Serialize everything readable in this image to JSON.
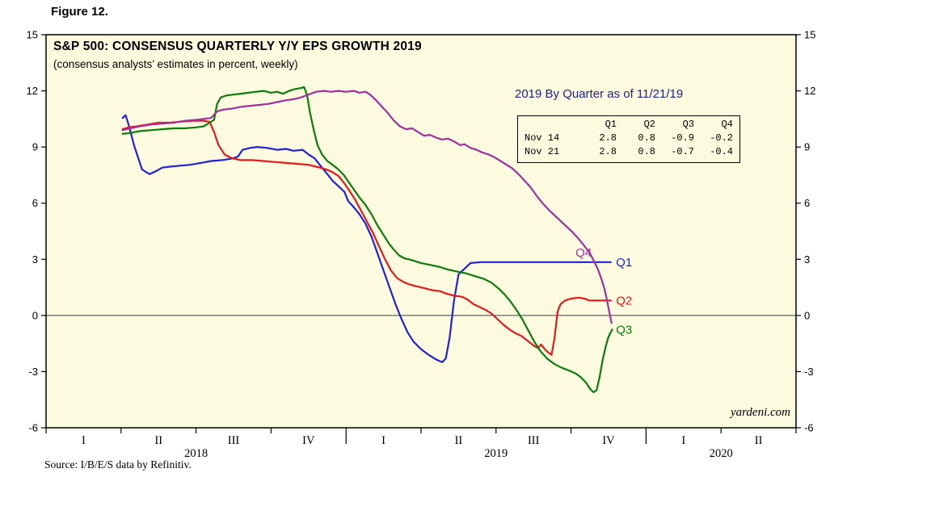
{
  "figure_label": "Figure 12.",
  "title": "S&P 500: CONSENSUS QUARTERLY Y/Y EPS GROWTH 2019",
  "subtitle": "(consensus analysts’ estimates in percent, weekly)",
  "watermark": "yardeni.com",
  "source": "Source: I/B/E/S data by Refinitiv.",
  "inset": {
    "title": "2019 By Quarter as of 11/21/19",
    "columns": [
      "Q1",
      "Q2",
      "Q3",
      "Q4"
    ],
    "rows": [
      {
        "label": "Nov 14",
        "values": [
          "2.8",
          "0.8",
          "-0.9",
          "-0.2"
        ]
      },
      {
        "label": "Nov 21",
        "values": [
          "2.8",
          "0.8",
          "-0.7",
          "-0.4"
        ]
      }
    ]
  },
  "colors": {
    "plot_bg": "#fdfbdf",
    "axis": "#000000",
    "inset_title": "#20208c"
  },
  "chart_data": {
    "type": "line",
    "title": "S&P 500: CONSENSUS QUARTERLY Y/Y EPS GROWTH 2019",
    "ylabel": "percent",
    "ylim": [
      -6,
      15
    ],
    "yticks": [
      -6,
      -3,
      0,
      3,
      6,
      9,
      12,
      15
    ],
    "grid": false,
    "x_unit": "quarter index from start of 2018 (0) to end of Q2 2020 (10), weekly observations",
    "x_axis": {
      "quarters": [
        "I",
        "II",
        "III",
        "IV",
        "I",
        "II",
        "III",
        "IV",
        "I",
        "II"
      ],
      "years": [
        {
          "label": "2018",
          "center_quarter": 2
        },
        {
          "label": "2019",
          "center_quarter": 6
        },
        {
          "label": "2020",
          "center_quarter": 9
        }
      ],
      "year_boundaries": [
        4,
        8
      ]
    },
    "series": [
      {
        "name": "Q1",
        "color": "#2121d4",
        "points": [
          [
            1.02,
            10.55
          ],
          [
            1.06,
            10.7
          ],
          [
            1.1,
            10.2
          ],
          [
            1.18,
            9.0
          ],
          [
            1.28,
            7.8
          ],
          [
            1.38,
            7.55
          ],
          [
            1.46,
            7.7
          ],
          [
            1.55,
            7.9
          ],
          [
            1.65,
            7.95
          ],
          [
            1.78,
            8.0
          ],
          [
            1.92,
            8.05
          ],
          [
            2.06,
            8.15
          ],
          [
            2.2,
            8.25
          ],
          [
            2.35,
            8.3
          ],
          [
            2.5,
            8.4
          ],
          [
            2.56,
            8.5
          ],
          [
            2.62,
            8.85
          ],
          [
            2.72,
            8.95
          ],
          [
            2.82,
            9.0
          ],
          [
            2.95,
            8.95
          ],
          [
            3.08,
            8.85
          ],
          [
            3.2,
            8.9
          ],
          [
            3.3,
            8.8
          ],
          [
            3.42,
            8.85
          ],
          [
            3.5,
            8.6
          ],
          [
            3.58,
            8.4
          ],
          [
            3.66,
            8.0
          ],
          [
            3.74,
            7.6
          ],
          [
            3.82,
            7.2
          ],
          [
            3.9,
            6.9
          ],
          [
            3.98,
            6.6
          ],
          [
            4.03,
            6.1
          ],
          [
            4.1,
            5.8
          ],
          [
            4.18,
            5.4
          ],
          [
            4.26,
            4.9
          ],
          [
            4.34,
            4.2
          ],
          [
            4.42,
            3.3
          ],
          [
            4.5,
            2.4
          ],
          [
            4.58,
            1.5
          ],
          [
            4.66,
            0.6
          ],
          [
            4.74,
            -0.2
          ],
          [
            4.82,
            -0.9
          ],
          [
            4.9,
            -1.4
          ],
          [
            5.0,
            -1.8
          ],
          [
            5.1,
            -2.1
          ],
          [
            5.2,
            -2.35
          ],
          [
            5.28,
            -2.5
          ],
          [
            5.33,
            -2.3
          ],
          [
            5.38,
            -1.2
          ],
          [
            5.44,
            0.8
          ],
          [
            5.5,
            2.2
          ],
          [
            5.58,
            2.5
          ],
          [
            5.66,
            2.8
          ],
          [
            5.8,
            2.85
          ],
          [
            6.1,
            2.85
          ],
          [
            6.4,
            2.85
          ],
          [
            6.7,
            2.85
          ],
          [
            7.0,
            2.85
          ],
          [
            7.3,
            2.85
          ],
          [
            7.53,
            2.85
          ]
        ]
      },
      {
        "name": "Q2",
        "color": "#e51919",
        "points": [
          [
            1.02,
            9.95
          ],
          [
            1.1,
            10.05
          ],
          [
            1.2,
            10.1
          ],
          [
            1.35,
            10.2
          ],
          [
            1.5,
            10.3
          ],
          [
            1.65,
            10.3
          ],
          [
            1.8,
            10.35
          ],
          [
            1.95,
            10.4
          ],
          [
            2.1,
            10.4
          ],
          [
            2.18,
            10.35
          ],
          [
            2.24,
            9.8
          ],
          [
            2.3,
            9.1
          ],
          [
            2.38,
            8.6
          ],
          [
            2.48,
            8.4
          ],
          [
            2.6,
            8.3
          ],
          [
            2.75,
            8.3
          ],
          [
            2.9,
            8.25
          ],
          [
            3.05,
            8.2
          ],
          [
            3.2,
            8.15
          ],
          [
            3.35,
            8.1
          ],
          [
            3.5,
            8.05
          ],
          [
            3.6,
            7.95
          ],
          [
            3.7,
            7.85
          ],
          [
            3.8,
            7.7
          ],
          [
            3.9,
            7.45
          ],
          [
            3.97,
            7.1
          ],
          [
            4.04,
            6.7
          ],
          [
            4.12,
            6.2
          ],
          [
            4.2,
            5.6
          ],
          [
            4.28,
            5.0
          ],
          [
            4.36,
            4.4
          ],
          [
            4.44,
            3.7
          ],
          [
            4.52,
            3.0
          ],
          [
            4.6,
            2.4
          ],
          [
            4.68,
            2.0
          ],
          [
            4.76,
            1.8
          ],
          [
            4.85,
            1.65
          ],
          [
            4.95,
            1.55
          ],
          [
            5.05,
            1.45
          ],
          [
            5.15,
            1.35
          ],
          [
            5.25,
            1.3
          ],
          [
            5.35,
            1.15
          ],
          [
            5.45,
            1.05
          ],
          [
            5.55,
            1.0
          ],
          [
            5.62,
            0.85
          ],
          [
            5.7,
            0.6
          ],
          [
            5.78,
            0.45
          ],
          [
            5.86,
            0.3
          ],
          [
            5.94,
            0.1
          ],
          [
            6.02,
            -0.2
          ],
          [
            6.1,
            -0.5
          ],
          [
            6.18,
            -0.75
          ],
          [
            6.26,
            -0.95
          ],
          [
            6.34,
            -1.1
          ],
          [
            6.42,
            -1.35
          ],
          [
            6.5,
            -1.6
          ],
          [
            6.56,
            -1.75
          ],
          [
            6.6,
            -1.55
          ],
          [
            6.65,
            -1.8
          ],
          [
            6.7,
            -2.0
          ],
          [
            6.74,
            -2.1
          ],
          [
            6.78,
            -1.2
          ],
          [
            6.82,
            0.2
          ],
          [
            6.86,
            0.6
          ],
          [
            6.92,
            0.8
          ],
          [
            7.0,
            0.9
          ],
          [
            7.1,
            0.95
          ],
          [
            7.18,
            0.9
          ],
          [
            7.24,
            0.8
          ],
          [
            7.35,
            0.8
          ],
          [
            7.45,
            0.8
          ],
          [
            7.53,
            0.8
          ]
        ]
      },
      {
        "name": "Q3",
        "color": "#0c7c0c",
        "points": [
          [
            1.02,
            9.7
          ],
          [
            1.12,
            9.75
          ],
          [
            1.25,
            9.85
          ],
          [
            1.4,
            9.9
          ],
          [
            1.55,
            9.95
          ],
          [
            1.7,
            10.0
          ],
          [
            1.85,
            10.0
          ],
          [
            2.0,
            10.05
          ],
          [
            2.1,
            10.1
          ],
          [
            2.18,
            10.3
          ],
          [
            2.24,
            10.45
          ],
          [
            2.28,
            11.3
          ],
          [
            2.33,
            11.65
          ],
          [
            2.4,
            11.75
          ],
          [
            2.5,
            11.8
          ],
          [
            2.6,
            11.85
          ],
          [
            2.7,
            11.9
          ],
          [
            2.8,
            11.95
          ],
          [
            2.9,
            12.0
          ],
          [
            3.0,
            11.9
          ],
          [
            3.08,
            11.95
          ],
          [
            3.16,
            11.85
          ],
          [
            3.24,
            12.0
          ],
          [
            3.32,
            12.1
          ],
          [
            3.4,
            12.15
          ],
          [
            3.44,
            12.2
          ],
          [
            3.48,
            11.8
          ],
          [
            3.52,
            10.8
          ],
          [
            3.57,
            9.9
          ],
          [
            3.62,
            9.1
          ],
          [
            3.68,
            8.6
          ],
          [
            3.75,
            8.25
          ],
          [
            3.82,
            8.05
          ],
          [
            3.9,
            7.8
          ],
          [
            3.97,
            7.5
          ],
          [
            4.04,
            7.1
          ],
          [
            4.11,
            6.7
          ],
          [
            4.18,
            6.3
          ],
          [
            4.26,
            5.9
          ],
          [
            4.34,
            5.4
          ],
          [
            4.42,
            4.8
          ],
          [
            4.5,
            4.3
          ],
          [
            4.57,
            3.85
          ],
          [
            4.64,
            3.5
          ],
          [
            4.71,
            3.2
          ],
          [
            4.78,
            3.05
          ],
          [
            4.88,
            2.95
          ],
          [
            5.0,
            2.8
          ],
          [
            5.12,
            2.7
          ],
          [
            5.24,
            2.6
          ],
          [
            5.36,
            2.45
          ],
          [
            5.48,
            2.35
          ],
          [
            5.6,
            2.25
          ],
          [
            5.72,
            2.1
          ],
          [
            5.84,
            1.95
          ],
          [
            5.94,
            1.75
          ],
          [
            6.03,
            1.45
          ],
          [
            6.12,
            1.1
          ],
          [
            6.2,
            0.7
          ],
          [
            6.28,
            0.25
          ],
          [
            6.35,
            -0.2
          ],
          [
            6.43,
            -0.8
          ],
          [
            6.51,
            -1.4
          ],
          [
            6.59,
            -1.9
          ],
          [
            6.68,
            -2.3
          ],
          [
            6.78,
            -2.6
          ],
          [
            6.88,
            -2.8
          ],
          [
            6.98,
            -2.95
          ],
          [
            7.06,
            -3.1
          ],
          [
            7.13,
            -3.3
          ],
          [
            7.2,
            -3.6
          ],
          [
            7.26,
            -3.95
          ],
          [
            7.3,
            -4.1
          ],
          [
            7.34,
            -4.0
          ],
          [
            7.38,
            -3.3
          ],
          [
            7.42,
            -2.4
          ],
          [
            7.46,
            -1.7
          ],
          [
            7.49,
            -1.25
          ],
          [
            7.52,
            -0.95
          ],
          [
            7.55,
            -0.75
          ]
        ]
      },
      {
        "name": "Q4",
        "color": "#a02fa0",
        "points": [
          [
            1.02,
            9.9
          ],
          [
            1.12,
            10.0
          ],
          [
            1.25,
            10.1
          ],
          [
            1.4,
            10.2
          ],
          [
            1.55,
            10.25
          ],
          [
            1.7,
            10.3
          ],
          [
            1.85,
            10.4
          ],
          [
            2.0,
            10.45
          ],
          [
            2.1,
            10.5
          ],
          [
            2.2,
            10.55
          ],
          [
            2.28,
            10.9
          ],
          [
            2.36,
            11.0
          ],
          [
            2.48,
            11.05
          ],
          [
            2.6,
            11.15
          ],
          [
            2.72,
            11.2
          ],
          [
            2.84,
            11.25
          ],
          [
            2.96,
            11.3
          ],
          [
            3.08,
            11.4
          ],
          [
            3.2,
            11.5
          ],
          [
            3.3,
            11.55
          ],
          [
            3.4,
            11.65
          ],
          [
            3.5,
            11.8
          ],
          [
            3.6,
            11.95
          ],
          [
            3.7,
            12.0
          ],
          [
            3.8,
            11.95
          ],
          [
            3.9,
            12.0
          ],
          [
            4.0,
            11.95
          ],
          [
            4.1,
            12.0
          ],
          [
            4.18,
            11.9
          ],
          [
            4.26,
            11.95
          ],
          [
            4.32,
            11.8
          ],
          [
            4.4,
            11.5
          ],
          [
            4.48,
            11.15
          ],
          [
            4.56,
            10.8
          ],
          [
            4.64,
            10.4
          ],
          [
            4.72,
            10.1
          ],
          [
            4.8,
            9.95
          ],
          [
            4.88,
            10.0
          ],
          [
            4.96,
            9.8
          ],
          [
            5.04,
            9.6
          ],
          [
            5.12,
            9.65
          ],
          [
            5.2,
            9.5
          ],
          [
            5.28,
            9.4
          ],
          [
            5.36,
            9.45
          ],
          [
            5.44,
            9.3
          ],
          [
            5.52,
            9.1
          ],
          [
            5.58,
            9.15
          ],
          [
            5.66,
            8.95
          ],
          [
            5.74,
            8.85
          ],
          [
            5.82,
            8.7
          ],
          [
            5.9,
            8.6
          ],
          [
            5.98,
            8.45
          ],
          [
            6.06,
            8.25
          ],
          [
            6.14,
            8.05
          ],
          [
            6.22,
            7.85
          ],
          [
            6.3,
            7.55
          ],
          [
            6.38,
            7.2
          ],
          [
            6.46,
            6.85
          ],
          [
            6.54,
            6.4
          ],
          [
            6.62,
            6.0
          ],
          [
            6.7,
            5.65
          ],
          [
            6.78,
            5.35
          ],
          [
            6.86,
            5.05
          ],
          [
            6.94,
            4.75
          ],
          [
            7.02,
            4.45
          ],
          [
            7.1,
            4.1
          ],
          [
            7.17,
            3.75
          ],
          [
            7.24,
            3.4
          ],
          [
            7.3,
            2.95
          ],
          [
            7.36,
            2.45
          ],
          [
            7.41,
            1.9
          ],
          [
            7.45,
            1.35
          ],
          [
            7.48,
            0.8
          ],
          [
            7.51,
            0.2
          ],
          [
            7.54,
            -0.4
          ]
        ]
      }
    ],
    "series_labels": [
      {
        "text": "Q4",
        "color": "#a02fa0",
        "x": 7.06,
        "y": 3.35
      },
      {
        "text": "Q1",
        "color": "#2121d4",
        "x": 7.6,
        "y": 2.85
      },
      {
        "text": "Q2",
        "color": "#e51919",
        "x": 7.6,
        "y": 0.8
      },
      {
        "text": "Q3",
        "color": "#0c7c0c",
        "x": 7.6,
        "y": -0.75
      }
    ],
    "legend_position": "end-of-line labels, right side of plot"
  }
}
